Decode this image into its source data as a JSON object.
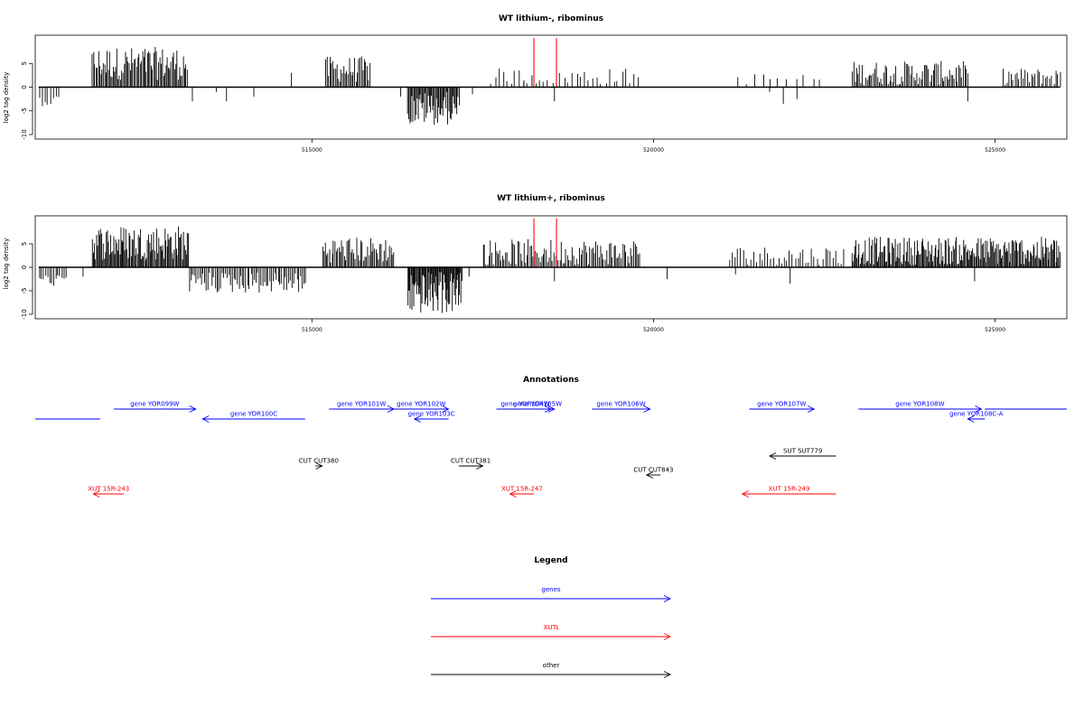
{
  "chart_data": [
    {
      "type": "bar",
      "title": "WT lithium-, ribominus",
      "xlabel": "",
      "ylabel": "log2 tag density",
      "xlim": [
        510950,
        526050
      ],
      "ylim": [
        -10,
        10
      ],
      "yticks": [
        "-10",
        "-5",
        "0",
        "5"
      ],
      "xticks": [
        {
          "value": 515000,
          "label": "515000"
        },
        {
          "value": 520000,
          "label": "520000"
        },
        {
          "value": 525000,
          "label": "525000"
        }
      ],
      "grid": false,
      "markers": {
        "color": "#ff5555",
        "x": [
          518250,
          518580
        ],
        "range": [
          -10,
          10
        ]
      },
      "series": [
        {
          "color": "#000000",
          "segments": [
            {
              "start": 511000,
              "end": 511300,
              "step": 40,
              "min": 0,
              "max": 0,
              "neg_min": -1.5,
              "neg_max": -4.0
            },
            {
              "start": 511780,
              "end": 513180,
              "step": 18,
              "min": 1.5,
              "max": 8.5,
              "neg_min": 0,
              "neg_max": 0
            },
            {
              "start": 515200,
              "end": 515850,
              "step": 20,
              "min": 1.0,
              "max": 6.5,
              "neg_min": 0,
              "neg_max": 0
            },
            {
              "start": 516400,
              "end": 517150,
              "step": 15,
              "min": 0,
              "max": 0,
              "neg_min": -1.0,
              "neg_max": -8.0
            },
            {
              "start": 517600,
              "end": 519800,
              "step": 60,
              "min": 0.5,
              "max": 4.0,
              "neg_min": 0,
              "neg_max": 0
            },
            {
              "start": 521200,
              "end": 522500,
              "step": 120,
              "min": 0.5,
              "max": 3.0,
              "neg_min": 0,
              "neg_max": 0
            },
            {
              "start": 522900,
              "end": 524600,
              "step": 22,
              "min": 0.5,
              "max": 5.5,
              "neg_min": 0,
              "neg_max": 0
            },
            {
              "start": 525100,
              "end": 525950,
              "step": 30,
              "min": 0.5,
              "max": 4.0,
              "neg_min": 0,
              "neg_max": 0
            }
          ],
          "points": [
            [
              513250,
              -3.0
            ],
            [
              513600,
              -1.0
            ],
            [
              513750,
              -3.0
            ],
            [
              514150,
              -2.0
            ],
            [
              514700,
              3.0
            ],
            [
              516300,
              -2.0
            ],
            [
              517350,
              -1.5
            ],
            [
              518100,
              1.0
            ],
            [
              518550,
              -3.0
            ],
            [
              521700,
              -1.0
            ],
            [
              521900,
              -3.5
            ],
            [
              522100,
              -2.5
            ],
            [
              524600,
              -3.0
            ]
          ]
        }
      ]
    },
    {
      "type": "bar",
      "title": "WT lithium+, ribominus",
      "xlabel": "",
      "ylabel": "log2 tag density",
      "xlim": [
        510950,
        526050
      ],
      "ylim": [
        -10,
        10
      ],
      "yticks": [
        "-10",
        "-5",
        "0",
        "5"
      ],
      "xticks": [
        {
          "value": 515000,
          "label": "515000"
        },
        {
          "value": 520000,
          "label": "520000"
        },
        {
          "value": 525000,
          "label": "525000"
        }
      ],
      "grid": false,
      "markers": {
        "color": "#ff5555",
        "x": [
          518250,
          518580
        ],
        "range": [
          -10,
          10
        ]
      },
      "series": [
        {
          "color": "#000000",
          "segments": [
            {
              "start": 511000,
              "end": 511400,
              "step": 30,
              "min": 0,
              "max": 0,
              "neg_min": -1.5,
              "neg_max": -4.0
            },
            {
              "start": 511780,
              "end": 513200,
              "step": 15,
              "min": 1.5,
              "max": 9.0,
              "neg_min": 0,
              "neg_max": 0
            },
            {
              "start": 513200,
              "end": 514900,
              "step": 25,
              "min": 0,
              "max": 0,
              "neg_min": -1.0,
              "neg_max": -5.5
            },
            {
              "start": 515150,
              "end": 516200,
              "step": 20,
              "min": 1.0,
              "max": 6.5,
              "neg_min": 0,
              "neg_max": 0
            },
            {
              "start": 516400,
              "end": 517200,
              "step": 12,
              "min": 0,
              "max": 0,
              "neg_min": -1.0,
              "neg_max": -10.0
            },
            {
              "start": 517500,
              "end": 519800,
              "step": 22,
              "min": 0.5,
              "max": 6.0,
              "neg_min": 0,
              "neg_max": 0
            },
            {
              "start": 521100,
              "end": 522800,
              "step": 40,
              "min": 0.5,
              "max": 4.5,
              "neg_min": 0,
              "neg_max": 0
            },
            {
              "start": 522900,
              "end": 525950,
              "step": 15,
              "min": 0.5,
              "max": 6.5,
              "neg_min": 0,
              "neg_max": 0
            }
          ],
          "points": [
            [
              511650,
              -2.0
            ],
            [
              517300,
              -2.0
            ],
            [
              518550,
              -3.0
            ],
            [
              520200,
              -2.5
            ],
            [
              521200,
              -1.5
            ],
            [
              522000,
              -3.5
            ],
            [
              524700,
              -3.0
            ]
          ]
        }
      ]
    }
  ],
  "annotations": {
    "title": "Annotations",
    "xlim": [
      510950,
      526050
    ],
    "colors": {
      "gene": "#0000ff",
      "xut": "#ff0000",
      "other": "#000000"
    },
    "features": [
      {
        "label": "",
        "kind": "gene",
        "start": 510950,
        "end": 511900,
        "strand": "none",
        "row": 2
      },
      {
        "label": "gene YOR099W",
        "kind": "gene",
        "start": 512100,
        "end": 513300,
        "strand": "+",
        "row": 0
      },
      {
        "label": "gene YOR100C",
        "kind": "gene",
        "start": 513400,
        "end": 514900,
        "strand": "-",
        "row": 1
      },
      {
        "label": "gene YOR101W",
        "kind": "gene",
        "start": 515250,
        "end": 516200,
        "strand": "+",
        "row": 0
      },
      {
        "label": "gene YOR102W",
        "kind": "gene",
        "start": 516200,
        "end": 517000,
        "strand": "+",
        "row": 0
      },
      {
        "label": "gene YOR103C",
        "kind": "gene",
        "start": 516500,
        "end": 517000,
        "strand": "-",
        "row": 1
      },
      {
        "label": "gene YOR104W",
        "kind": "gene",
        "start": 517700,
        "end": 518550,
        "strand": "+",
        "row": 0
      },
      {
        "label": "gene YOR105W",
        "kind": "gene",
        "start": 518100,
        "end": 518500,
        "strand": "+",
        "row": 0
      },
      {
        "label": "gene YOR106W",
        "kind": "gene",
        "start": 519100,
        "end": 519950,
        "strand": "+",
        "row": 0
      },
      {
        "label": "gene YOR107W",
        "kind": "gene",
        "start": 521400,
        "end": 522350,
        "strand": "+",
        "row": 0
      },
      {
        "label": "gene YOR108W",
        "kind": "gene",
        "start": 523000,
        "end": 524800,
        "strand": "+",
        "row": 0
      },
      {
        "label": "gene YOR108C-A",
        "kind": "gene",
        "start": 524600,
        "end": 524850,
        "strand": "-",
        "row": 1
      },
      {
        "label": "",
        "kind": "gene",
        "start": 524850,
        "end": 526050,
        "strand": "none",
        "row": 0
      },
      {
        "label": "SUT SUT779",
        "kind": "other",
        "start": 521700,
        "end": 522670,
        "strand": "-",
        "row": 3
      },
      {
        "label": "CUT CUT380",
        "kind": "other",
        "start": 515050,
        "end": 515150,
        "strand": "+",
        "row": 4
      },
      {
        "label": "CUT CUT381",
        "kind": "other",
        "start": 517150,
        "end": 517500,
        "strand": "+",
        "row": 4
      },
      {
        "label": "CUT CUT843",
        "kind": "other",
        "start": 519900,
        "end": 520100,
        "strand": "-",
        "row": 5
      },
      {
        "label": "XUT 15R-243",
        "kind": "xut",
        "start": 511800,
        "end": 512250,
        "strand": "-",
        "row": 6
      },
      {
        "label": "XUT 15R-247",
        "kind": "xut",
        "start": 517900,
        "end": 518250,
        "strand": "-",
        "row": 6
      },
      {
        "label": "XUT 15R-249",
        "kind": "xut",
        "start": 521300,
        "end": 522670,
        "strand": "-",
        "row": 6
      }
    ]
  },
  "legend": {
    "title": "Legend",
    "items": [
      {
        "label": "genes",
        "color": "#0000ff"
      },
      {
        "label": "XUTs",
        "color": "#ff0000"
      },
      {
        "label": "other",
        "color": "#000000"
      }
    ]
  }
}
